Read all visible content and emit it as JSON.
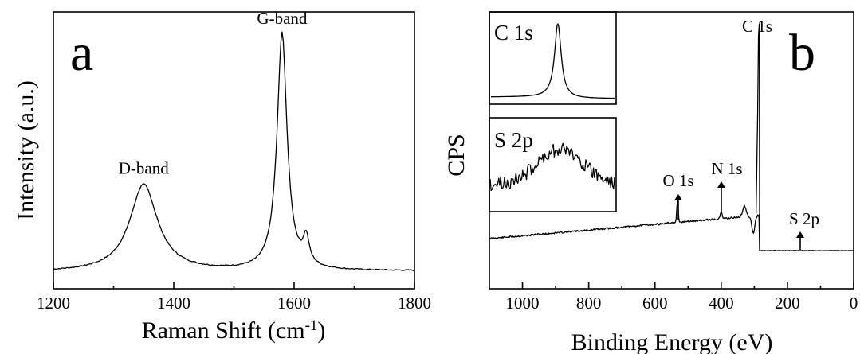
{
  "chart_data": [
    {
      "panel": "a",
      "type": "line",
      "xlabel": "Raman Shift (cm",
      "xlabel_sup": "-1",
      "xlabel_close": ")",
      "ylabel": "Intensity (a.u.)",
      "xlim": [
        1200,
        1800
      ],
      "xticks": [
        "1200",
        "1400",
        "1600",
        "1800"
      ],
      "ylim": [
        0,
        1
      ],
      "y_ticks_shown": false,
      "baseline": 0.06,
      "peaks": [
        {
          "label": "D-band",
          "x": 1350,
          "y": 0.36,
          "width": 28
        },
        {
          "label": "G-band",
          "x": 1580,
          "y": 0.98,
          "width": 10
        },
        {
          "label": "",
          "x": 1620,
          "y": 0.11,
          "width": 6
        }
      ]
    },
    {
      "panel": "b",
      "type": "line",
      "xlabel": "Binding Energy (eV)",
      "ylabel": "CPS",
      "xlim": [
        1100,
        0
      ],
      "xticks": [
        "1000",
        "800",
        "600",
        "400",
        "200",
        "0"
      ],
      "x_reversed": true,
      "y_ticks_shown": false,
      "peak_labels": [
        {
          "label": "C 1s",
          "x": 285
        },
        {
          "label": "O 1s",
          "x": 532,
          "arrow": true
        },
        {
          "label": "N 1s",
          "x": 400,
          "arrow": true
        },
        {
          "label": "S 2p",
          "x": 165,
          "arrow": true
        }
      ],
      "insets": [
        {
          "label": "C 1s",
          "shape": "sharp-peak"
        },
        {
          "label": "S 2p",
          "shape": "noisy-broad-peak"
        }
      ]
    }
  ]
}
